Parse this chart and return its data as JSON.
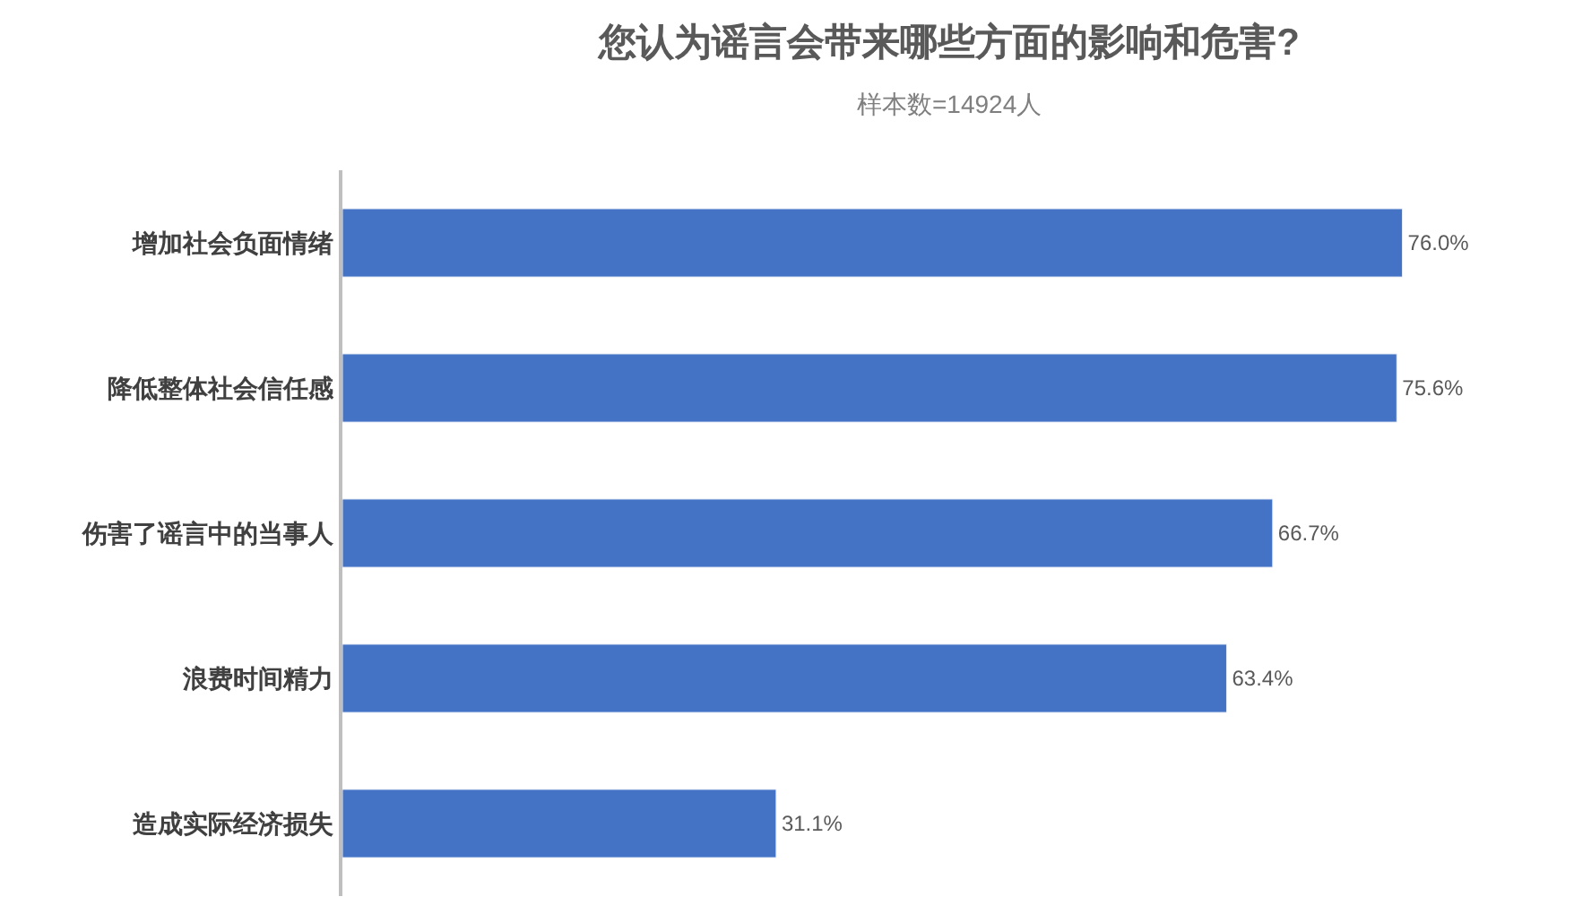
{
  "chart_data": {
    "type": "bar",
    "orientation": "horizontal",
    "title": "您认为谣言会带来哪些方面的影响和危害?",
    "subtitle": "样本数=14924人",
    "categories": [
      "增加社会负面情绪",
      "降低整体社会信任感",
      "伤害了谣言中的当事人",
      "浪费时间精力",
      "造成实际经济损失"
    ],
    "values": [
      76.0,
      75.6,
      66.7,
      63.4,
      31.1
    ],
    "value_labels": [
      "76.0%",
      "75.6%",
      "66.7%",
      "63.4%",
      "31.1%"
    ],
    "color": "#4472c4",
    "legend": false
  }
}
